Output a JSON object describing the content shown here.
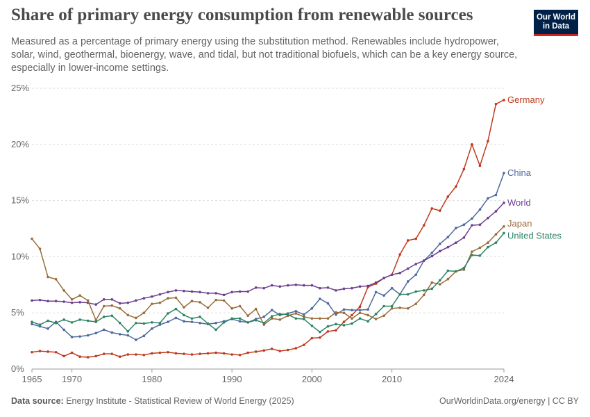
{
  "header": {
    "title": "Share of primary energy consumption from renewable sources",
    "subtitle": "Measured as a percentage of primary energy using the substitution method. Renewables include hydropower, solar, wind, geothermal, bioenergy, wave, and tidal, but not traditional biofuels, which can be a key energy source, especially in lower-income settings."
  },
  "logo": {
    "line1": "Our World",
    "line2": "in Data",
    "bg_color": "#002147",
    "accent_color": "#ce261e"
  },
  "footer": {
    "source_label": "Data source:",
    "source_text": "Energy Institute - Statistical Review of World Energy (2025)",
    "credit": "OurWorldinData.org/energy | CC BY"
  },
  "chart_data": {
    "type": "line",
    "x_start": 1965,
    "xlim": [
      1965,
      2024
    ],
    "ylim": [
      0,
      25
    ],
    "x_ticks": [
      1965,
      1970,
      1980,
      1990,
      2000,
      2010,
      2024
    ],
    "y_ticks": [
      {
        "value": 0,
        "label": "0%"
      },
      {
        "value": 5,
        "label": "5%"
      },
      {
        "value": 10,
        "label": "10%"
      },
      {
        "value": 15,
        "label": "15%"
      },
      {
        "value": 20,
        "label": "20%"
      },
      {
        "value": 25,
        "label": "25%"
      }
    ],
    "grid": "horizontal-dashed",
    "legend": "right-end-labels",
    "series": [
      {
        "name": "Germany",
        "color": "#c0391d",
        "values": [
          1.5,
          1.6,
          1.55,
          1.5,
          1.15,
          1.45,
          1.1,
          1.05,
          1.15,
          1.35,
          1.35,
          1.1,
          1.3,
          1.3,
          1.25,
          1.4,
          1.45,
          1.5,
          1.4,
          1.35,
          1.3,
          1.35,
          1.4,
          1.45,
          1.4,
          1.3,
          1.25,
          1.45,
          1.55,
          1.65,
          1.8,
          1.6,
          1.7,
          1.85,
          2.15,
          2.75,
          2.8,
          3.35,
          3.45,
          4.2,
          4.8,
          5.55,
          7.3,
          7.6,
          8.1,
          8.4,
          10.2,
          11.45,
          11.6,
          12.8,
          14.3,
          14.1,
          15.35,
          16.25,
          17.8,
          20.0,
          18.1,
          20.3,
          23.6,
          23.95
        ]
      },
      {
        "name": "China",
        "color": "#4c6a9c",
        "values": [
          4.0,
          3.8,
          3.6,
          4.2,
          3.5,
          2.85,
          2.9,
          3.0,
          3.2,
          3.5,
          3.25,
          3.1,
          3.0,
          2.6,
          2.95,
          3.6,
          3.95,
          4.2,
          4.55,
          4.25,
          4.2,
          4.1,
          4.0,
          4.1,
          4.25,
          4.45,
          4.25,
          4.15,
          4.45,
          4.65,
          5.25,
          4.8,
          4.95,
          5.15,
          4.85,
          5.4,
          6.25,
          5.85,
          4.85,
          5.3,
          5.25,
          5.25,
          5.3,
          6.85,
          6.55,
          7.2,
          6.65,
          7.8,
          8.4,
          9.65,
          10.35,
          11.15,
          11.75,
          12.55,
          12.85,
          13.4,
          14.2,
          15.2,
          15.5,
          17.45
        ]
      },
      {
        "name": "World",
        "color": "#6d3e91",
        "values": [
          6.1,
          6.15,
          6.05,
          6.05,
          6.0,
          5.9,
          5.95,
          5.9,
          5.75,
          6.2,
          6.2,
          5.85,
          5.9,
          6.1,
          6.3,
          6.45,
          6.65,
          6.85,
          7.0,
          6.95,
          6.9,
          6.85,
          6.75,
          6.75,
          6.6,
          6.85,
          6.9,
          6.9,
          7.25,
          7.2,
          7.45,
          7.35,
          7.45,
          7.5,
          7.45,
          7.45,
          7.2,
          7.25,
          7.0,
          7.15,
          7.2,
          7.35,
          7.4,
          7.7,
          8.1,
          8.4,
          8.55,
          8.95,
          9.35,
          9.65,
          10.05,
          10.5,
          10.85,
          11.25,
          11.7,
          12.8,
          12.85,
          13.45,
          14.05,
          14.8
        ]
      },
      {
        "name": "Japan",
        "color": "#996d39",
        "values": [
          11.6,
          10.7,
          8.2,
          8.0,
          7.0,
          6.2,
          6.55,
          6.1,
          4.35,
          5.6,
          5.65,
          5.4,
          4.8,
          4.55,
          5.0,
          5.8,
          5.9,
          6.3,
          6.35,
          5.5,
          6.05,
          5.95,
          5.45,
          6.15,
          6.1,
          5.4,
          5.6,
          4.75,
          5.35,
          3.95,
          4.5,
          4.4,
          4.75,
          4.95,
          4.65,
          4.5,
          4.5,
          4.5,
          5.05,
          5.0,
          4.5,
          5.0,
          4.8,
          4.45,
          4.75,
          5.4,
          5.45,
          5.4,
          5.8,
          6.6,
          7.7,
          7.55,
          8.0,
          8.7,
          8.85,
          10.45,
          10.8,
          11.25,
          12.0,
          12.7
        ]
      },
      {
        "name": "United States",
        "color": "#2c8465",
        "values": [
          4.2,
          3.95,
          4.3,
          4.1,
          4.4,
          4.15,
          4.4,
          4.3,
          4.2,
          4.65,
          4.75,
          4.1,
          3.35,
          4.1,
          4.05,
          4.15,
          4.1,
          4.95,
          5.35,
          4.8,
          4.5,
          4.65,
          4.05,
          3.5,
          4.15,
          4.5,
          4.5,
          4.15,
          4.35,
          4.1,
          4.7,
          4.9,
          4.85,
          4.5,
          4.45,
          3.85,
          3.3,
          3.8,
          4.0,
          3.9,
          4.05,
          4.5,
          4.25,
          4.9,
          5.6,
          5.6,
          6.65,
          6.65,
          6.9,
          7.0,
          7.15,
          7.9,
          8.75,
          8.7,
          9.0,
          10.15,
          10.1,
          10.85,
          11.25,
          12.1
        ]
      }
    ]
  }
}
